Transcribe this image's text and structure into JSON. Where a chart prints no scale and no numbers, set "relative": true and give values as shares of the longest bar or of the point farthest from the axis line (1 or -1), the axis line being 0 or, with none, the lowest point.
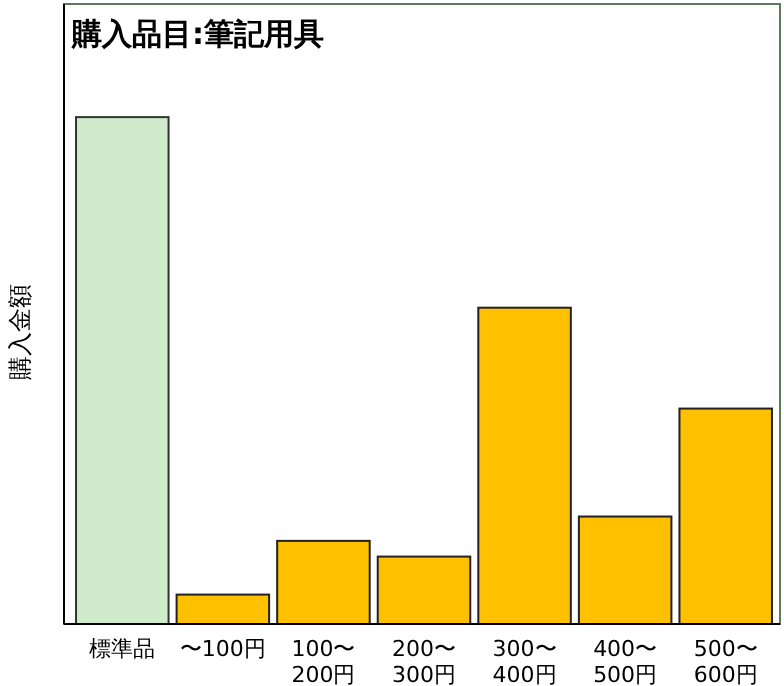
{
  "chart_data": {
    "type": "bar",
    "title": "購入品目:筆記用具",
    "ylabel": "購入金額",
    "relative": true,
    "categories": [
      "標準品",
      "〜100円",
      "100〜200円",
      "200〜300円",
      "300〜400円",
      "400〜500円",
      "500〜600円"
    ],
    "values": [
      1,
      0.058,
      0.164,
      0.133,
      0.624,
      0.212,
      0.425
    ],
    "colors": [
      "#d0ebcc",
      "#ffc000",
      "#ffc000",
      "#ffc000",
      "#ffc000",
      "#ffc000",
      "#ffc000"
    ]
  }
}
